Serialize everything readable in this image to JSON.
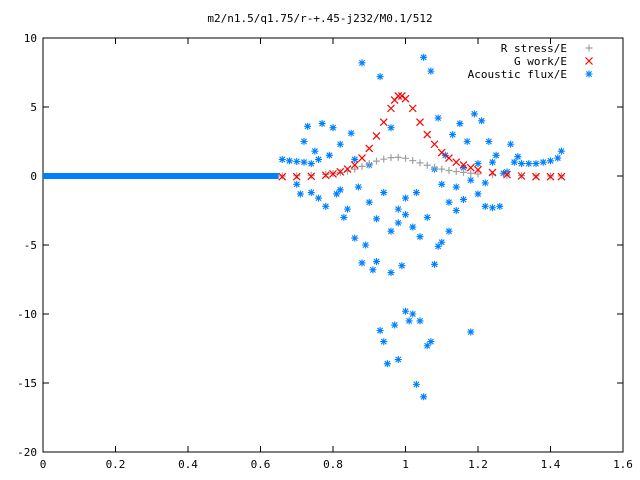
{
  "chart_data": {
    "type": "scatter",
    "title": "m2/n1.5/q1.75/r-+.45-j232/M0.1/512",
    "xlabel": "",
    "ylabel": "",
    "xlim": [
      0,
      1.6
    ],
    "ylim": [
      -20,
      10
    ],
    "xticks": [
      0,
      0.2,
      0.4,
      0.6,
      0.8,
      1,
      1.2,
      1.4,
      1.6
    ],
    "yticks": [
      -20,
      -15,
      -10,
      -5,
      0,
      5,
      10
    ],
    "xtick_labels": [
      "0",
      "0.2",
      "0.4",
      "0.6",
      "0.8",
      "1",
      "1.2",
      "1.4",
      "1.6"
    ],
    "ytick_labels": [
      "-20",
      "-15",
      "-10",
      "-5",
      "0",
      "5",
      "10"
    ],
    "grid": false,
    "legend_position": "top-right",
    "series": [
      {
        "name": "R stress/E",
        "marker": "+",
        "color": "#a0a0a0",
        "points": [
          [
            0.66,
            0.0
          ],
          [
            0.7,
            0.02
          ],
          [
            0.74,
            0.05
          ],
          [
            0.78,
            0.12
          ],
          [
            0.8,
            0.18
          ],
          [
            0.82,
            0.25
          ],
          [
            0.84,
            0.35
          ],
          [
            0.86,
            0.5
          ],
          [
            0.88,
            0.7
          ],
          [
            0.9,
            0.9
          ],
          [
            0.92,
            1.08
          ],
          [
            0.94,
            1.22
          ],
          [
            0.96,
            1.33
          ],
          [
            0.98,
            1.35
          ],
          [
            1.0,
            1.28
          ],
          [
            1.02,
            1.12
          ],
          [
            1.04,
            0.95
          ],
          [
            1.06,
            0.78
          ],
          [
            1.08,
            0.63
          ],
          [
            1.1,
            0.5
          ],
          [
            1.12,
            0.4
          ],
          [
            1.14,
            0.32
          ],
          [
            1.16,
            0.26
          ],
          [
            1.18,
            0.2
          ],
          [
            1.2,
            0.15
          ],
          [
            1.24,
            0.1
          ],
          [
            1.28,
            0.06
          ],
          [
            1.32,
            0.03
          ],
          [
            1.36,
            0.01
          ],
          [
            1.4,
            0.0
          ],
          [
            1.43,
            0.0
          ]
        ]
      },
      {
        "name": "G work/E",
        "marker": "x",
        "color": "#ff0000",
        "points": [
          [
            0.66,
            -0.05
          ],
          [
            0.7,
            -0.05
          ],
          [
            0.74,
            -0.02
          ],
          [
            0.78,
            0.05
          ],
          [
            0.8,
            0.15
          ],
          [
            0.82,
            0.3
          ],
          [
            0.84,
            0.5
          ],
          [
            0.86,
            0.8
          ],
          [
            0.88,
            1.3
          ],
          [
            0.9,
            2.0
          ],
          [
            0.92,
            2.9
          ],
          [
            0.94,
            3.9
          ],
          [
            0.96,
            4.9
          ],
          [
            0.97,
            5.5
          ],
          [
            0.98,
            5.8
          ],
          [
            0.99,
            5.8
          ],
          [
            1.0,
            5.6
          ],
          [
            1.02,
            4.9
          ],
          [
            1.04,
            3.9
          ],
          [
            1.06,
            3.0
          ],
          [
            1.08,
            2.3
          ],
          [
            1.1,
            1.7
          ],
          [
            1.12,
            1.3
          ],
          [
            1.14,
            1.0
          ],
          [
            1.16,
            0.8
          ],
          [
            1.18,
            0.6
          ],
          [
            1.2,
            0.45
          ],
          [
            1.24,
            0.25
          ],
          [
            1.28,
            0.1
          ],
          [
            1.32,
            0.0
          ],
          [
            1.36,
            -0.05
          ],
          [
            1.4,
            -0.05
          ],
          [
            1.43,
            -0.05
          ]
        ]
      },
      {
        "name": "Acoustic flux/E",
        "marker": "*",
        "color": "#0080ff",
        "baseline": {
          "x_from": 0.0,
          "x_to": 0.65,
          "y": 0.0
        },
        "points": [
          [
            0.66,
            1.2
          ],
          [
            0.68,
            1.1
          ],
          [
            0.7,
            1.05
          ],
          [
            0.72,
            1.0
          ],
          [
            0.74,
            0.9
          ],
          [
            0.76,
            1.2
          ],
          [
            0.7,
            -0.6
          ],
          [
            0.71,
            -1.3
          ],
          [
            0.72,
            2.5
          ],
          [
            0.73,
            3.6
          ],
          [
            0.74,
            -1.2
          ],
          [
            0.75,
            1.8
          ],
          [
            0.76,
            -1.6
          ],
          [
            0.77,
            3.8
          ],
          [
            0.78,
            -2.2
          ],
          [
            0.79,
            1.5
          ],
          [
            0.8,
            3.5
          ],
          [
            0.81,
            -1.3
          ],
          [
            0.82,
            2.3
          ],
          [
            0.83,
            -3.0
          ],
          [
            0.84,
            -2.4
          ],
          [
            0.85,
            3.1
          ],
          [
            0.86,
            -4.5
          ],
          [
            0.87,
            -0.8
          ],
          [
            0.88,
            -6.3
          ],
          [
            0.89,
            -5.0
          ],
          [
            0.9,
            -1.9
          ],
          [
            0.91,
            -6.8
          ],
          [
            0.92,
            -6.2
          ],
          [
            0.93,
            -11.2
          ],
          [
            0.94,
            -12.0
          ],
          [
            0.95,
            -13.6
          ],
          [
            0.96,
            -7.0
          ],
          [
            0.97,
            -10.8
          ],
          [
            0.98,
            -13.3
          ],
          [
            0.99,
            -6.5
          ],
          [
            1.0,
            -9.8
          ],
          [
            1.01,
            -10.5
          ],
          [
            1.02,
            -10.0
          ],
          [
            1.03,
            -15.1
          ],
          [
            1.04,
            -10.5
          ],
          [
            1.05,
            -16.0
          ],
          [
            1.06,
            -12.3
          ],
          [
            1.07,
            -12.0
          ],
          [
            1.08,
            -6.4
          ],
          [
            1.09,
            -5.1
          ],
          [
            1.1,
            -4.8
          ],
          [
            1.12,
            -4.0
          ],
          [
            1.14,
            -2.5
          ],
          [
            1.16,
            -1.7
          ],
          [
            1.18,
            -11.3
          ],
          [
            1.2,
            -1.3
          ],
          [
            1.22,
            -2.2
          ],
          [
            1.24,
            1.0
          ],
          [
            0.88,
            8.2
          ],
          [
            0.93,
            7.2
          ],
          [
            0.96,
            3.5
          ],
          [
            0.98,
            -2.4
          ],
          [
            1.0,
            -2.8
          ],
          [
            1.03,
            -1.2
          ],
          [
            1.05,
            8.6
          ],
          [
            1.07,
            7.6
          ],
          [
            1.09,
            4.2
          ],
          [
            1.11,
            1.5
          ],
          [
            1.13,
            3.0
          ],
          [
            1.15,
            3.8
          ],
          [
            1.17,
            2.5
          ],
          [
            1.19,
            4.5
          ],
          [
            1.21,
            4.0
          ],
          [
            1.23,
            2.5
          ],
          [
            1.25,
            1.5
          ],
          [
            1.27,
            0.2
          ],
          [
            1.29,
            2.3
          ],
          [
            1.31,
            1.4
          ],
          [
            1.3,
            1.0
          ],
          [
            1.32,
            0.9
          ],
          [
            1.34,
            0.9
          ],
          [
            1.36,
            0.9
          ],
          [
            1.38,
            1.0
          ],
          [
            1.4,
            1.1
          ],
          [
            1.42,
            1.3
          ],
          [
            1.43,
            1.8
          ],
          [
            0.82,
            -1.0
          ],
          [
            0.86,
            1.2
          ],
          [
            0.9,
            0.8
          ],
          [
            0.92,
            -3.1
          ],
          [
            0.94,
            -1.2
          ],
          [
            0.96,
            -4.0
          ],
          [
            0.98,
            -3.4
          ],
          [
            1.0,
            -1.6
          ],
          [
            1.02,
            -3.7
          ],
          [
            1.04,
            -4.4
          ],
          [
            1.06,
            -3.0
          ],
          [
            1.08,
            0.5
          ],
          [
            1.1,
            -0.6
          ],
          [
            1.12,
            -1.9
          ],
          [
            1.14,
            -0.8
          ],
          [
            1.16,
            0.6
          ],
          [
            1.18,
            -0.3
          ],
          [
            1.2,
            0.9
          ],
          [
            1.22,
            -0.5
          ],
          [
            1.24,
            -2.3
          ],
          [
            1.26,
            -2.2
          ],
          [
            1.28,
            0.3
          ]
        ]
      }
    ]
  }
}
